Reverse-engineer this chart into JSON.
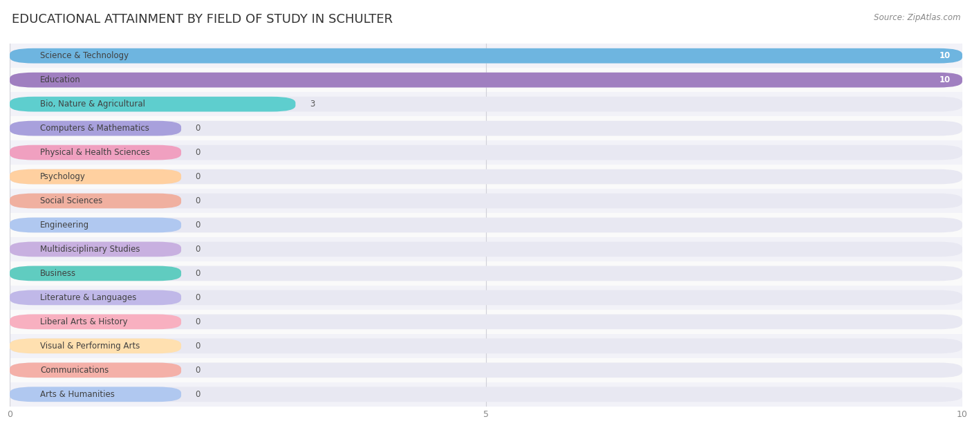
{
  "title": "EDUCATIONAL ATTAINMENT BY FIELD OF STUDY IN SCHULTER",
  "source": "Source: ZipAtlas.com",
  "categories": [
    "Science & Technology",
    "Education",
    "Bio, Nature & Agricultural",
    "Computers & Mathematics",
    "Physical & Health Sciences",
    "Psychology",
    "Social Sciences",
    "Engineering",
    "Multidisciplinary Studies",
    "Business",
    "Literature & Languages",
    "Liberal Arts & History",
    "Visual & Performing Arts",
    "Communications",
    "Arts & Humanities"
  ],
  "values": [
    10,
    10,
    3,
    0,
    0,
    0,
    0,
    0,
    0,
    0,
    0,
    0,
    0,
    0,
    0
  ],
  "bar_colors": [
    "#6eb5e0",
    "#a07fc0",
    "#5ecece",
    "#a8a0dc",
    "#f0a0c0",
    "#ffd0a0",
    "#f0b0a0",
    "#b0c8f0",
    "#c8b0e0",
    "#60ccc0",
    "#c0b8e8",
    "#f8b0c0",
    "#ffe0b0",
    "#f4b0a8",
    "#b0c8f0"
  ],
  "zero_bar_width": 1.8,
  "xlim": [
    0,
    10
  ],
  "xticks": [
    0,
    5,
    10
  ],
  "background_color": "#ffffff",
  "title_fontsize": 13,
  "label_fontsize": 8.5,
  "source_fontsize": 8.5,
  "bar_height": 0.62
}
